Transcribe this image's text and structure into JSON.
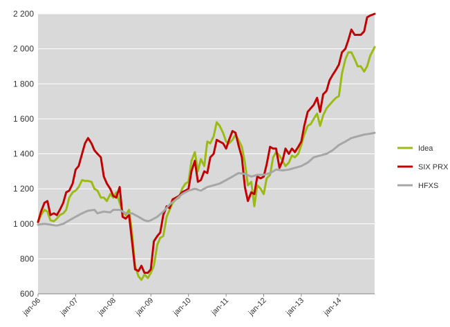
{
  "chart_data": {
    "type": "line",
    "title": "",
    "xlabel": "",
    "ylabel": "",
    "ylim": [
      600,
      2200
    ],
    "yticks": [
      600,
      800,
      1000,
      1200,
      1400,
      1600,
      1800,
      2000,
      2200
    ],
    "ytick_labels": [
      "600",
      "800",
      "1 000",
      "1 200",
      "1 400",
      "1 600",
      "1 800",
      "2 000",
      "2 200"
    ],
    "x_tick_labels": [
      "jan-06",
      "jan-07",
      "jan-08",
      "jan-09",
      "jan-10",
      "jan-11",
      "jan-12",
      "jan-13",
      "jan-14"
    ],
    "x_tick_positions": [
      2006,
      2007,
      2008,
      2009,
      2010,
      2011,
      2012,
      2013,
      2014
    ],
    "xlim": [
      2006,
      2014.95
    ],
    "grid": "horizontal",
    "legend_position": "right",
    "plot_background": "#d9d9d9",
    "series": [
      {
        "name": "Idea",
        "color": "#9bbb14",
        "points": [
          [
            2006.0,
            1010
          ],
          [
            2006.08,
            1050
          ],
          [
            2006.17,
            1080
          ],
          [
            2006.25,
            1070
          ],
          [
            2006.33,
            1020
          ],
          [
            2006.42,
            1015
          ],
          [
            2006.5,
            1030
          ],
          [
            2006.58,
            1050
          ],
          [
            2006.67,
            1060
          ],
          [
            2006.75,
            1080
          ],
          [
            2006.83,
            1150
          ],
          [
            2006.92,
            1180
          ],
          [
            2007.0,
            1190
          ],
          [
            2007.08,
            1210
          ],
          [
            2007.17,
            1250
          ],
          [
            2007.25,
            1245
          ],
          [
            2007.33,
            1245
          ],
          [
            2007.42,
            1240
          ],
          [
            2007.5,
            1200
          ],
          [
            2007.58,
            1190
          ],
          [
            2007.67,
            1150
          ],
          [
            2007.75,
            1150
          ],
          [
            2007.83,
            1130
          ],
          [
            2007.92,
            1170
          ],
          [
            2008.0,
            1150
          ],
          [
            2008.08,
            1180
          ],
          [
            2008.17,
            1120
          ],
          [
            2008.25,
            1070
          ],
          [
            2008.33,
            1050
          ],
          [
            2008.42,
            1080
          ],
          [
            2008.5,
            950
          ],
          [
            2008.58,
            760
          ],
          [
            2008.67,
            700
          ],
          [
            2008.75,
            680
          ],
          [
            2008.83,
            710
          ],
          [
            2008.92,
            690
          ],
          [
            2009.0,
            720
          ],
          [
            2009.08,
            760
          ],
          [
            2009.17,
            880
          ],
          [
            2009.25,
            920
          ],
          [
            2009.33,
            930
          ],
          [
            2009.42,
            1040
          ],
          [
            2009.5,
            1080
          ],
          [
            2009.58,
            1120
          ],
          [
            2009.67,
            1140
          ],
          [
            2009.75,
            1150
          ],
          [
            2009.83,
            1200
          ],
          [
            2009.92,
            1230
          ],
          [
            2010.0,
            1240
          ],
          [
            2010.08,
            1360
          ],
          [
            2010.17,
            1410
          ],
          [
            2010.25,
            1300
          ],
          [
            2010.33,
            1370
          ],
          [
            2010.42,
            1330
          ],
          [
            2010.5,
            1470
          ],
          [
            2010.58,
            1460
          ],
          [
            2010.67,
            1500
          ],
          [
            2010.75,
            1580
          ],
          [
            2010.83,
            1560
          ],
          [
            2010.92,
            1520
          ],
          [
            2011.0,
            1470
          ],
          [
            2011.08,
            1460
          ],
          [
            2011.17,
            1480
          ],
          [
            2011.25,
            1510
          ],
          [
            2011.33,
            1480
          ],
          [
            2011.42,
            1440
          ],
          [
            2011.5,
            1350
          ],
          [
            2011.58,
            1220
          ],
          [
            2011.67,
            1240
          ],
          [
            2011.75,
            1100
          ],
          [
            2011.83,
            1220
          ],
          [
            2011.92,
            1200
          ],
          [
            2012.0,
            1170
          ],
          [
            2012.08,
            1260
          ],
          [
            2012.17,
            1280
          ],
          [
            2012.25,
            1380
          ],
          [
            2012.33,
            1410
          ],
          [
            2012.42,
            1390
          ],
          [
            2012.5,
            1360
          ],
          [
            2012.58,
            1330
          ],
          [
            2012.67,
            1350
          ],
          [
            2012.75,
            1390
          ],
          [
            2012.83,
            1380
          ],
          [
            2012.92,
            1400
          ],
          [
            2013.0,
            1450
          ],
          [
            2013.08,
            1510
          ],
          [
            2013.17,
            1560
          ],
          [
            2013.25,
            1570
          ],
          [
            2013.33,
            1600
          ],
          [
            2013.42,
            1630
          ],
          [
            2013.5,
            1560
          ],
          [
            2013.58,
            1620
          ],
          [
            2013.67,
            1660
          ],
          [
            2013.75,
            1680
          ],
          [
            2013.83,
            1700
          ],
          [
            2013.92,
            1720
          ],
          [
            2014.0,
            1730
          ],
          [
            2014.08,
            1860
          ],
          [
            2014.17,
            1940
          ],
          [
            2014.25,
            1980
          ],
          [
            2014.33,
            1980
          ],
          [
            2014.42,
            1940
          ],
          [
            2014.5,
            1900
          ],
          [
            2014.58,
            1900
          ],
          [
            2014.67,
            1870
          ],
          [
            2014.75,
            1900
          ],
          [
            2014.83,
            1960
          ],
          [
            2014.95,
            2010
          ]
        ]
      },
      {
        "name": "SIX PRX",
        "color": "#c00000",
        "points": [
          [
            2006.0,
            1010
          ],
          [
            2006.08,
            1070
          ],
          [
            2006.17,
            1120
          ],
          [
            2006.25,
            1130
          ],
          [
            2006.33,
            1050
          ],
          [
            2006.42,
            1060
          ],
          [
            2006.5,
            1050
          ],
          [
            2006.58,
            1080
          ],
          [
            2006.67,
            1120
          ],
          [
            2006.75,
            1180
          ],
          [
            2006.83,
            1190
          ],
          [
            2006.92,
            1230
          ],
          [
            2007.0,
            1310
          ],
          [
            2007.08,
            1330
          ],
          [
            2007.17,
            1400
          ],
          [
            2007.25,
            1460
          ],
          [
            2007.33,
            1490
          ],
          [
            2007.42,
            1460
          ],
          [
            2007.5,
            1420
          ],
          [
            2007.58,
            1400
          ],
          [
            2007.67,
            1380
          ],
          [
            2007.75,
            1270
          ],
          [
            2007.83,
            1230
          ],
          [
            2007.92,
            1200
          ],
          [
            2008.0,
            1160
          ],
          [
            2008.08,
            1150
          ],
          [
            2008.17,
            1210
          ],
          [
            2008.25,
            1040
          ],
          [
            2008.33,
            1030
          ],
          [
            2008.42,
            1050
          ],
          [
            2008.5,
            900
          ],
          [
            2008.58,
            740
          ],
          [
            2008.67,
            730
          ],
          [
            2008.75,
            760
          ],
          [
            2008.83,
            720
          ],
          [
            2008.92,
            720
          ],
          [
            2009.0,
            740
          ],
          [
            2009.08,
            900
          ],
          [
            2009.17,
            930
          ],
          [
            2009.25,
            950
          ],
          [
            2009.33,
            1050
          ],
          [
            2009.42,
            1100
          ],
          [
            2009.5,
            1090
          ],
          [
            2009.58,
            1140
          ],
          [
            2009.67,
            1150
          ],
          [
            2009.75,
            1160
          ],
          [
            2009.83,
            1180
          ],
          [
            2009.92,
            1190
          ],
          [
            2010.0,
            1200
          ],
          [
            2010.08,
            1300
          ],
          [
            2010.17,
            1360
          ],
          [
            2010.25,
            1240
          ],
          [
            2010.33,
            1250
          ],
          [
            2010.42,
            1300
          ],
          [
            2010.5,
            1290
          ],
          [
            2010.58,
            1380
          ],
          [
            2010.67,
            1400
          ],
          [
            2010.75,
            1480
          ],
          [
            2010.83,
            1470
          ],
          [
            2010.92,
            1460
          ],
          [
            2011.0,
            1430
          ],
          [
            2011.08,
            1480
          ],
          [
            2011.17,
            1530
          ],
          [
            2011.25,
            1520
          ],
          [
            2011.33,
            1450
          ],
          [
            2011.42,
            1380
          ],
          [
            2011.5,
            1210
          ],
          [
            2011.58,
            1130
          ],
          [
            2011.67,
            1180
          ],
          [
            2011.75,
            1170
          ],
          [
            2011.83,
            1270
          ],
          [
            2011.92,
            1260
          ],
          [
            2012.0,
            1270
          ],
          [
            2012.08,
            1340
          ],
          [
            2012.17,
            1440
          ],
          [
            2012.25,
            1430
          ],
          [
            2012.33,
            1430
          ],
          [
            2012.42,
            1320
          ],
          [
            2012.5,
            1360
          ],
          [
            2012.58,
            1430
          ],
          [
            2012.67,
            1400
          ],
          [
            2012.75,
            1430
          ],
          [
            2012.83,
            1410
          ],
          [
            2012.92,
            1440
          ],
          [
            2013.0,
            1470
          ],
          [
            2013.08,
            1560
          ],
          [
            2013.17,
            1640
          ],
          [
            2013.25,
            1660
          ],
          [
            2013.33,
            1680
          ],
          [
            2013.42,
            1720
          ],
          [
            2013.5,
            1640
          ],
          [
            2013.58,
            1740
          ],
          [
            2013.67,
            1760
          ],
          [
            2013.75,
            1820
          ],
          [
            2013.83,
            1850
          ],
          [
            2013.92,
            1880
          ],
          [
            2014.0,
            1910
          ],
          [
            2014.08,
            1980
          ],
          [
            2014.17,
            2000
          ],
          [
            2014.25,
            2050
          ],
          [
            2014.33,
            2110
          ],
          [
            2014.42,
            2080
          ],
          [
            2014.5,
            2080
          ],
          [
            2014.58,
            2080
          ],
          [
            2014.67,
            2100
          ],
          [
            2014.75,
            2180
          ],
          [
            2014.83,
            2190
          ],
          [
            2014.95,
            2200
          ]
        ]
      },
      {
        "name": "HFXS",
        "color": "#a6a6a6",
        "points": [
          [
            2006.0,
            995
          ],
          [
            2006.17,
            1000
          ],
          [
            2006.33,
            995
          ],
          [
            2006.5,
            990
          ],
          [
            2006.67,
            1000
          ],
          [
            2006.83,
            1020
          ],
          [
            2007.0,
            1040
          ],
          [
            2007.17,
            1060
          ],
          [
            2007.33,
            1075
          ],
          [
            2007.5,
            1080
          ],
          [
            2007.58,
            1060
          ],
          [
            2007.75,
            1070
          ],
          [
            2007.92,
            1065
          ],
          [
            2008.0,
            1080
          ],
          [
            2008.17,
            1080
          ],
          [
            2008.33,
            1060
          ],
          [
            2008.5,
            1060
          ],
          [
            2008.67,
            1040
          ],
          [
            2008.83,
            1020
          ],
          [
            2008.92,
            1015
          ],
          [
            2009.0,
            1020
          ],
          [
            2009.17,
            1040
          ],
          [
            2009.33,
            1070
          ],
          [
            2009.5,
            1110
          ],
          [
            2009.67,
            1140
          ],
          [
            2009.83,
            1170
          ],
          [
            2010.0,
            1190
          ],
          [
            2010.17,
            1200
          ],
          [
            2010.33,
            1190
          ],
          [
            2010.5,
            1210
          ],
          [
            2010.67,
            1220
          ],
          [
            2010.83,
            1230
          ],
          [
            2011.0,
            1250
          ],
          [
            2011.17,
            1270
          ],
          [
            2011.33,
            1290
          ],
          [
            2011.5,
            1285
          ],
          [
            2011.67,
            1270
          ],
          [
            2011.83,
            1280
          ],
          [
            2012.0,
            1280
          ],
          [
            2012.17,
            1290
          ],
          [
            2012.33,
            1310
          ],
          [
            2012.5,
            1305
          ],
          [
            2012.67,
            1310
          ],
          [
            2012.83,
            1320
          ],
          [
            2013.0,
            1330
          ],
          [
            2013.17,
            1350
          ],
          [
            2013.33,
            1380
          ],
          [
            2013.5,
            1390
          ],
          [
            2013.67,
            1400
          ],
          [
            2013.83,
            1420
          ],
          [
            2014.0,
            1450
          ],
          [
            2014.17,
            1470
          ],
          [
            2014.33,
            1490
          ],
          [
            2014.5,
            1500
          ],
          [
            2014.67,
            1510
          ],
          [
            2014.83,
            1515
          ],
          [
            2014.95,
            1520
          ]
        ]
      }
    ]
  }
}
